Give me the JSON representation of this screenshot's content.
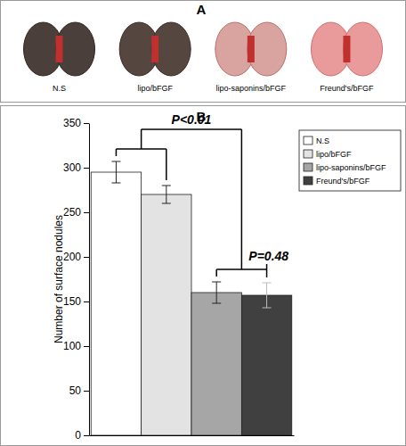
{
  "panels": {
    "a": {
      "label": "A",
      "captions": [
        "N.S",
        "lipo/bFGF",
        "lipo-saponins/bFGF",
        "Freund's/bFGF"
      ]
    },
    "b": {
      "label": "B"
    }
  },
  "chart_data": {
    "type": "bar",
    "y_label": "Number of surface nodules",
    "categories": [
      null
    ],
    "series": [
      {
        "name": "N.S",
        "color": "#ffffff",
        "values": [
          295
        ],
        "errors": [
          12
        ]
      },
      {
        "name": "lipo/bFGF",
        "color": "#e3e3e3",
        "values": [
          270
        ],
        "errors": [
          10
        ]
      },
      {
        "name": "lipo-saponins/bFGF",
        "color": "#a6a6a6",
        "values": [
          160
        ],
        "errors": [
          12
        ]
      },
      {
        "name": "Freund's/bFGF",
        "color": "#404040",
        "values": [
          157
        ],
        "errors": [
          14
        ]
      }
    ],
    "ylim": [
      0,
      350
    ],
    "yticks": [
      0,
      50,
      100,
      150,
      200,
      250,
      300,
      350
    ],
    "legend": "top-right",
    "annotations": [
      {
        "text": "P<0.01"
      },
      {
        "text": "P=0.48"
      }
    ]
  }
}
